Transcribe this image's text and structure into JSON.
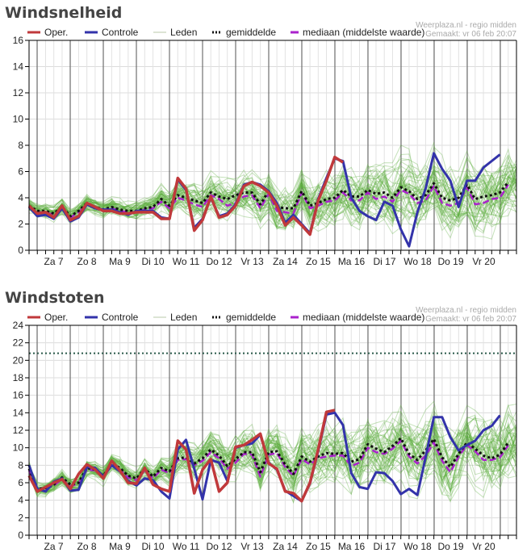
{
  "credit": {
    "source": "Weerplaza.nl - regio midden",
    "made": "Gemaakt: vr 06 feb 20:07"
  },
  "legend": {
    "oper": "Oper.",
    "controle": "Controle",
    "leden": "Leden",
    "gemiddelde": "gemiddelde",
    "mediaan": "mediaan (middelste waarde)"
  },
  "colors": {
    "oper": "#c0393b",
    "controle": "#3333aa",
    "leden": "#5aab3a",
    "gemiddelde": "#111111",
    "mediaan": "#aa22cc",
    "threshold": "#2a5a4a"
  },
  "chart_data": [
    {
      "type": "line",
      "title": "Windsnelheid",
      "xlabel": "",
      "ylabel": "",
      "ylim": [
        0,
        16
      ],
      "yticks": [
        0,
        2,
        4,
        6,
        8,
        10,
        12,
        14,
        16
      ],
      "grid": true,
      "legend_position": "top",
      "x_step_hours": 6,
      "x_day_labels": [
        "Za 7",
        "Zo 8",
        "Ma 9",
        "Di 10",
        "Wo 11",
        "Do 12",
        "Vr 13",
        "Za 14",
        "Zo 15",
        "Ma 16",
        "Di 17",
        "Wo 18",
        "Do 19",
        "Vr 20"
      ],
      "series": [
        {
          "name": "Oper.",
          "key": "oper",
          "values": [
            3.4,
            2.8,
            2.9,
            2.5,
            3.4,
            2.3,
            2.6,
            3.6,
            3.3,
            3.0,
            3.0,
            2.8,
            2.8,
            2.9,
            2.9,
            2.9,
            2.4,
            2.4,
            5.5,
            4.7,
            1.5,
            2.3,
            4.1,
            2.5,
            2.7,
            3.4,
            4.9,
            5.2,
            4.9,
            4.4,
            3.4,
            1.9,
            2.5,
            1.9,
            1.2,
            3.8,
            5.3,
            7.1,
            6.7,
            null,
            null,
            null,
            null,
            null,
            null,
            null,
            null,
            null,
            null,
            null,
            null,
            null,
            null,
            null,
            null,
            null,
            null,
            null,
            null,
            null
          ]
        },
        {
          "name": "Controle",
          "key": "controle",
          "values": [
            3.3,
            2.6,
            2.7,
            2.4,
            3.2,
            2.2,
            2.5,
            3.5,
            3.2,
            3.1,
            3.1,
            2.9,
            2.7,
            3.0,
            3.0,
            3.0,
            2.5,
            2.4,
            5.4,
            4.6,
            1.7,
            2.4,
            4.0,
            2.6,
            2.8,
            3.5,
            5.0,
            5.2,
            5.0,
            4.5,
            3.6,
            2.1,
            2.7,
            2.0,
            1.3,
            3.9,
            5.5,
            7.0,
            6.8,
            4.0,
            3.0,
            2.6,
            2.3,
            3.7,
            3.4,
            1.6,
            0.3,
            2.9,
            4.7,
            7.4,
            6.2,
            5.3,
            3.3,
            5.3,
            5.3,
            6.3,
            6.8,
            7.3,
            null,
            null
          ]
        },
        {
          "name": "gemiddelde",
          "key": "gemiddelde",
          "values": [
            3.4,
            3.0,
            3.0,
            2.8,
            3.3,
            2.6,
            3.0,
            3.6,
            3.3,
            3.1,
            3.3,
            3.1,
            3.0,
            3.0,
            3.2,
            3.3,
            3.9,
            3.4,
            4.2,
            4.0,
            3.8,
            3.6,
            4.4,
            4.1,
            3.9,
            4.2,
            4.4,
            4.4,
            3.5,
            4.5,
            3.3,
            3.2,
            3.2,
            4.5,
            3.4,
            3.6,
            3.9,
            4.0,
            4.6,
            4.1,
            4.1,
            4.6,
            4.3,
            4.4,
            4.0,
            4.8,
            4.5,
            3.9,
            4.2,
            5.1,
            4.0,
            3.8,
            4.0,
            5.0,
            3.9,
            4.1,
            4.2,
            4.4,
            5.2,
            null
          ]
        },
        {
          "name": "mediaan (middelste waarde)",
          "key": "mediaan",
          "values": [
            3.3,
            2.9,
            2.9,
            2.7,
            3.2,
            2.5,
            2.9,
            3.5,
            3.2,
            3.0,
            3.2,
            3.0,
            2.9,
            2.9,
            3.1,
            3.2,
            3.7,
            3.2,
            4.0,
            3.8,
            3.5,
            3.3,
            4.2,
            3.9,
            3.4,
            3.6,
            4.1,
            4.2,
            3.2,
            4.3,
            3.0,
            2.9,
            2.8,
            4.4,
            3.2,
            3.4,
            3.7,
            3.8,
            4.4,
            3.8,
            3.8,
            4.4,
            3.9,
            4.1,
            3.7,
            4.6,
            4.3,
            3.6,
            3.8,
            4.9,
            3.6,
            3.4,
            3.6,
            4.8,
            3.5,
            3.6,
            3.9,
            4.0,
            5.0,
            null
          ]
        }
      ],
      "ensemble": {
        "name": "Leden",
        "key": "leden",
        "member_count": 50,
        "spread": [
          0.6,
          0.6,
          0.6,
          0.6,
          0.6,
          0.6,
          0.6,
          0.7,
          0.7,
          0.7,
          0.7,
          0.7,
          0.7,
          0.8,
          0.8,
          0.9,
          1.0,
          1.0,
          1.2,
          1.2,
          1.3,
          1.3,
          1.4,
          1.5,
          1.6,
          1.6,
          1.7,
          1.7,
          1.8,
          1.8,
          1.8,
          1.9,
          1.9,
          2.0,
          2.0,
          2.0,
          2.1,
          2.1,
          2.2,
          2.2,
          2.2,
          2.3,
          2.3,
          2.3,
          2.3,
          2.4,
          2.4,
          2.4,
          2.4,
          2.5,
          2.5,
          2.5,
          2.5,
          2.5,
          2.5,
          2.5,
          2.6,
          2.6,
          2.6,
          2.6
        ]
      }
    },
    {
      "type": "line",
      "title": "Windstoten",
      "xlabel": "",
      "ylabel": "",
      "ylim": [
        0,
        24
      ],
      "yticks": [
        0,
        2,
        4,
        6,
        8,
        10,
        12,
        14,
        16,
        18,
        20,
        22,
        24
      ],
      "grid": true,
      "legend_position": "top",
      "threshold_line": 20.8,
      "x_step_hours": 6,
      "x_day_labels": [
        "Za 7",
        "Zo 8",
        "Ma 9",
        "Di 10",
        "Wo 11",
        "Do 12",
        "Vr 13",
        "Za 14",
        "Zo 15",
        "Ma 16",
        "Di 17",
        "Wo 18",
        "Do 19",
        "Vr 20"
      ],
      "series": [
        {
          "name": "Oper.",
          "key": "oper",
          "values": [
            6.8,
            5.0,
            5.5,
            6.0,
            6.4,
            5.3,
            7.0,
            8.1,
            7.5,
            6.5,
            8.5,
            7.4,
            6.0,
            5.9,
            7.7,
            5.8,
            5.3,
            5.0,
            10.8,
            9.8,
            4.8,
            7.5,
            8.7,
            5.0,
            6.0,
            10.1,
            10.3,
            10.9,
            11.6,
            8.2,
            7.6,
            5.0,
            4.8,
            3.9,
            6.0,
            9.8,
            14.1,
            14.3,
            null,
            null,
            null,
            null,
            null,
            null,
            null,
            null,
            null,
            null,
            null,
            null,
            null,
            null,
            null,
            null,
            null,
            null,
            null,
            null,
            null,
            null
          ]
        },
        {
          "name": "Controle",
          "key": "controle",
          "values": [
            8.0,
            5.3,
            5.0,
            6.1,
            6.5,
            5.1,
            5.2,
            7.8,
            7.7,
            6.7,
            8.0,
            7.3,
            6.2,
            5.7,
            6.5,
            6.3,
            5.0,
            4.2,
            9.8,
            10.9,
            7.6,
            4.1,
            8.6,
            8.3,
            6.2,
            10.0,
            10.3,
            10.5,
            11.5,
            8.3,
            7.5,
            5.1,
            4.5,
            3.9,
            5.9,
            9.6,
            13.8,
            14.0,
            12.6,
            7.1,
            5.5,
            5.3,
            7.2,
            7.1,
            6.2,
            4.7,
            5.3,
            4.6,
            8.9,
            13.5,
            13.5,
            11.2,
            9.7,
            10.3,
            10.8,
            12.0,
            12.5,
            13.7,
            null,
            null
          ]
        },
        {
          "name": "gemiddelde",
          "key": "gemiddelde",
          "values": [
            7.6,
            5.3,
            5.4,
            5.8,
            6.6,
            5.8,
            6.0,
            7.7,
            7.5,
            6.8,
            8.2,
            7.7,
            6.8,
            6.5,
            7.6,
            6.7,
            7.7,
            7.3,
            8.8,
            8.9,
            8.2,
            8.8,
            9.8,
            9.1,
            7.9,
            8.7,
            9.5,
            9.5,
            7.2,
            9.5,
            9.6,
            8.1,
            7.0,
            9.0,
            8.4,
            9.0,
            9.4,
            9.3,
            9.4,
            8.4,
            8.7,
            10.4,
            9.9,
            9.5,
            10.2,
            11.1,
            9.3,
            8.6,
            9.7,
            11.0,
            8.9,
            7.8,
            9.3,
            10.6,
            9.9,
            9.1,
            8.8,
            9.2,
            10.6,
            null
          ]
        },
        {
          "name": "mediaan (middelste waarde)",
          "key": "mediaan",
          "values": [
            7.4,
            5.2,
            5.3,
            5.7,
            6.4,
            5.6,
            5.9,
            7.5,
            7.4,
            6.6,
            8.0,
            7.5,
            6.6,
            6.3,
            7.4,
            6.5,
            7.5,
            7.1,
            8.6,
            8.7,
            8.0,
            8.5,
            9.5,
            8.8,
            7.6,
            8.3,
            9.3,
            9.2,
            6.7,
            9.2,
            9.4,
            7.8,
            6.8,
            8.7,
            8.1,
            8.8,
            9.0,
            9.1,
            9.1,
            7.9,
            8.3,
            10.0,
            9.5,
            9.3,
            9.9,
            10.8,
            9.0,
            8.2,
            9.1,
            10.6,
            8.5,
            7.2,
            9.0,
            10.3,
            9.6,
            8.6,
            8.6,
            8.9,
            10.3,
            null
          ]
        }
      ],
      "ensemble": {
        "name": "Leden",
        "key": "leden",
        "member_count": 50,
        "spread": [
          1.0,
          0.9,
          0.9,
          0.9,
          0.9,
          1.0,
          1.0,
          1.0,
          1.0,
          1.0,
          1.1,
          1.1,
          1.2,
          1.2,
          1.3,
          1.4,
          1.5,
          1.6,
          1.8,
          1.9,
          2.0,
          2.1,
          2.2,
          2.3,
          2.4,
          2.5,
          2.6,
          2.7,
          2.8,
          2.9,
          3.0,
          3.1,
          3.2,
          3.3,
          3.4,
          3.5,
          3.6,
          3.6,
          3.7,
          3.7,
          3.8,
          3.8,
          3.8,
          3.9,
          3.9,
          3.9,
          4.0,
          4.0,
          4.0,
          4.0,
          4.1,
          4.1,
          4.1,
          4.1,
          4.2,
          4.2,
          4.2,
          4.2,
          4.3,
          4.3
        ]
      }
    }
  ]
}
